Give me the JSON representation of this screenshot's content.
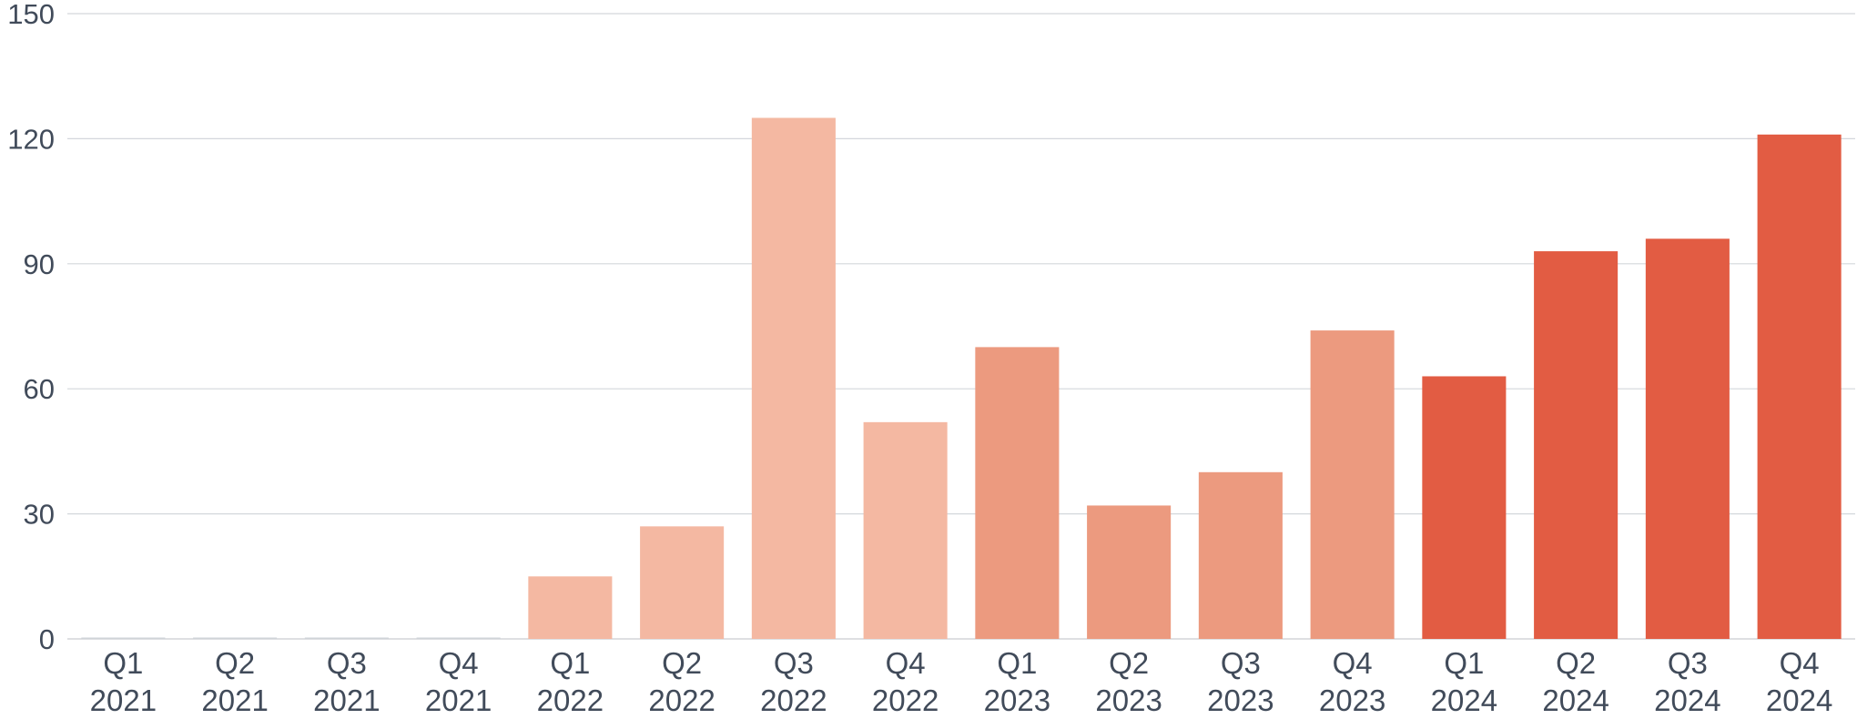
{
  "chart_data": {
    "type": "bar",
    "title": "",
    "xlabel": "",
    "ylabel": "",
    "ylim": [
      0,
      150
    ],
    "yticks": [
      0,
      30,
      60,
      90,
      120,
      150
    ],
    "grid": true,
    "categories": [
      [
        "Q1",
        "2021"
      ],
      [
        "Q2",
        "2021"
      ],
      [
        "Q3",
        "2021"
      ],
      [
        "Q4",
        "2021"
      ],
      [
        "Q1",
        "2022"
      ],
      [
        "Q2",
        "2022"
      ],
      [
        "Q3",
        "2022"
      ],
      [
        "Q4",
        "2022"
      ],
      [
        "Q1",
        "2023"
      ],
      [
        "Q2",
        "2023"
      ],
      [
        "Q3",
        "2023"
      ],
      [
        "Q4",
        "2023"
      ],
      [
        "Q1",
        "2024"
      ],
      [
        "Q2",
        "2024"
      ],
      [
        "Q3",
        "2024"
      ],
      [
        "Q4",
        "2024"
      ]
    ],
    "values": [
      0,
      0,
      0,
      0,
      15,
      27,
      125,
      52,
      70,
      32,
      40,
      74,
      63,
      93,
      96,
      121
    ],
    "year_colors": {
      "2021": "#cfd3d8",
      "2022": "#f4b8a2",
      "2023": "#ec9a7f",
      "2024": "#e25c43"
    },
    "colors": {
      "grid": "#d4d7dc",
      "axis": "#c9ccd1",
      "tick_text": "#414b5a"
    }
  }
}
